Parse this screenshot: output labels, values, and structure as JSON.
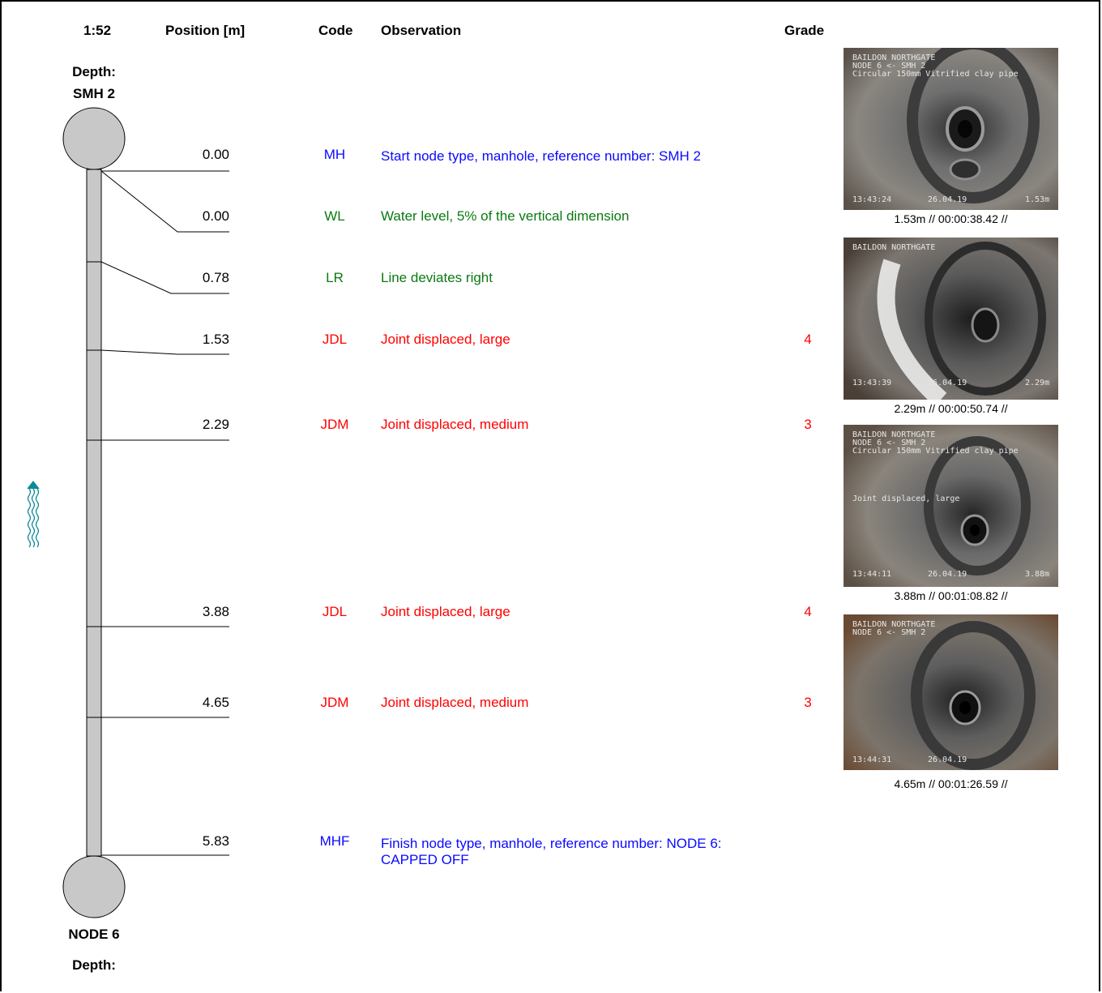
{
  "header": {
    "scale": "1:52",
    "position": "Position [m]",
    "code": "Code",
    "observation": "Observation",
    "grade": "Grade"
  },
  "start_node": {
    "depth_label": "Depth:",
    "name": "SMH 2"
  },
  "end_node": {
    "name": "NODE 6",
    "depth_label": "Depth:"
  },
  "observations": [
    {
      "position": "0.00",
      "code": "MH",
      "text": "Start node type, manhole, reference number: SMH 2",
      "grade": "",
      "color": "#0a0aff"
    },
    {
      "position": "0.00",
      "code": "WL",
      "text": "Water level, 5% of the vertical dimension",
      "grade": "",
      "color": "#0a7a12"
    },
    {
      "position": "0.78",
      "code": "LR",
      "text": "Line deviates right",
      "grade": "",
      "color": "#0a7a12"
    },
    {
      "position": "1.53",
      "code": "JDL",
      "text": "Joint displaced, large",
      "grade": "4",
      "color": "#ff0000"
    },
    {
      "position": "2.29",
      "code": "JDM",
      "text": "Joint displaced, medium",
      "grade": "3",
      "color": "#ff0000"
    },
    {
      "position": "3.88",
      "code": "JDL",
      "text": "Joint displaced, large",
      "grade": "4",
      "color": "#ff0000"
    },
    {
      "position": "4.65",
      "code": "JDM",
      "text": "Joint displaced, medium",
      "grade": "3",
      "color": "#ff0000"
    },
    {
      "position": "5.83",
      "code": "MHF",
      "text": "Finish node type, manhole, reference number: NODE 6: CAPPED OFF",
      "grade": "",
      "color": "#0a0aff"
    }
  ],
  "photos": [
    {
      "osd_top": "BAILDON NORTHGATE\nNODE 6 <- SMH 2\nCircular 150mm Vitrified clay pipe",
      "osd_mid": "",
      "osd_time": "13:43:24",
      "osd_date": "26.04.19",
      "osd_dist": "1.53m",
      "caption": "1.53m // 00:00:38.42 //"
    },
    {
      "osd_top": "BAILDON NORTHGATE",
      "osd_mid": "",
      "osd_time": "13:43:39",
      "osd_date": "26.04.19",
      "osd_dist": "2.29m",
      "caption": "2.29m // 00:00:50.74 //"
    },
    {
      "osd_top": "BAILDON NORTHGATE\nNODE 6 <- SMH 2\nCircular 150mm Vitrified clay pipe",
      "osd_mid": "Joint displaced, large",
      "osd_time": "13:44:11",
      "osd_date": "26.04.19",
      "osd_dist": "3.88m",
      "caption": "3.88m // 00:01:08.82 //"
    },
    {
      "osd_top": "BAILDON NORTHGATE\nNODE 6 <- SMH 2",
      "osd_mid": "",
      "osd_time": "13:44:31",
      "osd_date": "26.04.19",
      "osd_dist": "",
      "caption": "4.65m // 00:01:26.59 //"
    }
  ],
  "flow_icon": "flow-direction-arrow-icon"
}
